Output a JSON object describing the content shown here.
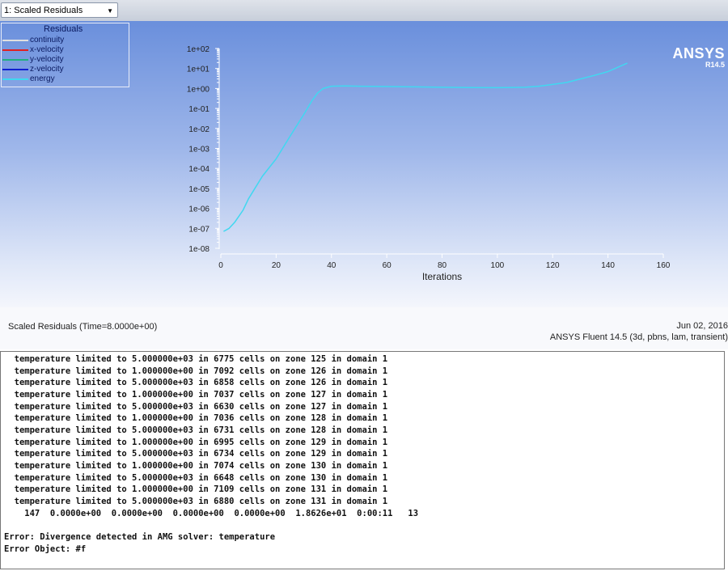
{
  "toolbar": {
    "dropdown_value": "1: Scaled Residuals"
  },
  "legend": {
    "title": "Residuals",
    "items": [
      {
        "label": "continuity",
        "color": "#e0e0e0"
      },
      {
        "label": "x-velocity",
        "color": "#e02020"
      },
      {
        "label": "y-velocity",
        "color": "#20b080"
      },
      {
        "label": "z-velocity",
        "color": "#1020d0"
      },
      {
        "label": "energy",
        "color": "#40d8f0"
      }
    ]
  },
  "logo": {
    "name": "ANSYS",
    "version": "R14.5"
  },
  "chart_data": {
    "type": "line",
    "xlabel": "Iterations",
    "ylabel": "",
    "yscale": "log",
    "xlim": [
      0,
      160
    ],
    "ylim": [
      1e-08,
      100
    ],
    "x_ticks": [
      "0",
      "20",
      "40",
      "60",
      "80",
      "100",
      "120",
      "140",
      "160"
    ],
    "y_ticks": [
      "1e+02",
      "1e+01",
      "1e+00",
      "1e-01",
      "1e-02",
      "1e-03",
      "1e-04",
      "1e-05",
      "1e-06",
      "1e-07",
      "1e-08"
    ],
    "series": [
      {
        "name": "energy",
        "color": "#40d8f0",
        "x": [
          1,
          3,
          5,
          8,
          10,
          15,
          20,
          25,
          30,
          33,
          35,
          37,
          40,
          45,
          50,
          60,
          70,
          80,
          90,
          100,
          110,
          115,
          120,
          125,
          130,
          135,
          140,
          147
        ],
        "y": [
          7e-08,
          1e-07,
          2e-07,
          8e-07,
          3e-06,
          4e-05,
          0.0003,
          0.004,
          0.05,
          0.25,
          0.6,
          1.0,
          1.3,
          1.35,
          1.3,
          1.25,
          1.2,
          1.15,
          1.12,
          1.1,
          1.15,
          1.3,
          1.6,
          2.0,
          3.0,
          4.5,
          7.0,
          18.626
        ]
      }
    ]
  },
  "footer": {
    "title": "Scaled Residuals  (Time=8.0000e+00)",
    "date": "Jun 02, 2016",
    "version": "ANSYS Fluent 14.5 (3d, pbns, lam, transient)"
  },
  "console": {
    "lines": [
      "  temperature limited to 5.000000e+03 in 6775 cells on zone 125 in domain 1",
      "  temperature limited to 1.000000e+00 in 7092 cells on zone 126 in domain 1",
      "  temperature limited to 5.000000e+03 in 6858 cells on zone 126 in domain 1",
      "  temperature limited to 1.000000e+00 in 7037 cells on zone 127 in domain 1",
      "  temperature limited to 5.000000e+03 in 6630 cells on zone 127 in domain 1",
      "  temperature limited to 1.000000e+00 in 7036 cells on zone 128 in domain 1",
      "  temperature limited to 5.000000e+03 in 6731 cells on zone 128 in domain 1",
      "  temperature limited to 1.000000e+00 in 6995 cells on zone 129 in domain 1",
      "  temperature limited to 5.000000e+03 in 6734 cells on zone 129 in domain 1",
      "  temperature limited to 1.000000e+00 in 7074 cells on zone 130 in domain 1",
      "  temperature limited to 5.000000e+03 in 6648 cells on zone 130 in domain 1",
      "  temperature limited to 1.000000e+00 in 7109 cells on zone 131 in domain 1",
      "  temperature limited to 5.000000e+03 in 6880 cells on zone 131 in domain 1",
      "    147  0.0000e+00  0.0000e+00  0.0000e+00  0.0000e+00  1.8626e+01  0:00:11   13",
      "",
      "Error: Divergence detected in AMG solver: temperature",
      "Error Object: #f"
    ]
  }
}
